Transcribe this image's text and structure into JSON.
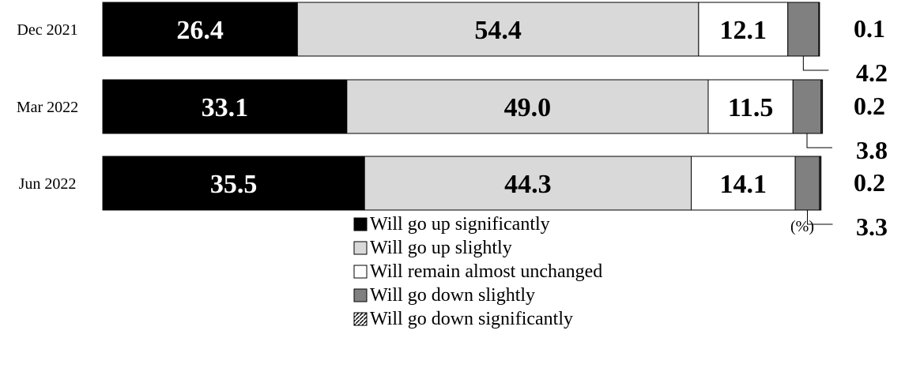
{
  "chart_data": {
    "type": "bar",
    "orientation": "horizontal",
    "stacked": true,
    "unit": "(%)",
    "categories": [
      "Dec 2021",
      "Mar 2022",
      "Jun 2022"
    ],
    "series": [
      {
        "name": "Will go up significantly",
        "values": [
          26.4,
          33.1,
          35.5
        ],
        "color": "#000000",
        "label_color": "#ffffff",
        "display": [
          "26.4",
          "33.1",
          "35.5"
        ]
      },
      {
        "name": "Will go up slightly",
        "values": [
          54.4,
          49.0,
          44.3
        ],
        "color": "#d9d9d9",
        "label_color": "#000000",
        "display": [
          "54.4",
          "49.0",
          "44.3"
        ]
      },
      {
        "name": "Will remain almost unchanged",
        "values": [
          12.1,
          11.5,
          14.1
        ],
        "color": "#ffffff",
        "label_color": "#000000",
        "display": [
          "12.1",
          "11.5",
          "14.1"
        ]
      },
      {
        "name": "Will go down slightly",
        "values": [
          4.2,
          3.8,
          3.3
        ],
        "color": "#808080",
        "label_color": "#000000",
        "display": [
          "4.2",
          "3.8",
          "3.3"
        ]
      },
      {
        "name": "Will go down significantly",
        "values": [
          0.1,
          0.2,
          0.2
        ],
        "color": "#404040",
        "label_color": "#000000",
        "display": [
          "0.1",
          "0.2",
          "0.2"
        ]
      }
    ],
    "xlim": [
      0,
      100
    ],
    "grid": false,
    "legend_position": "bottom"
  }
}
